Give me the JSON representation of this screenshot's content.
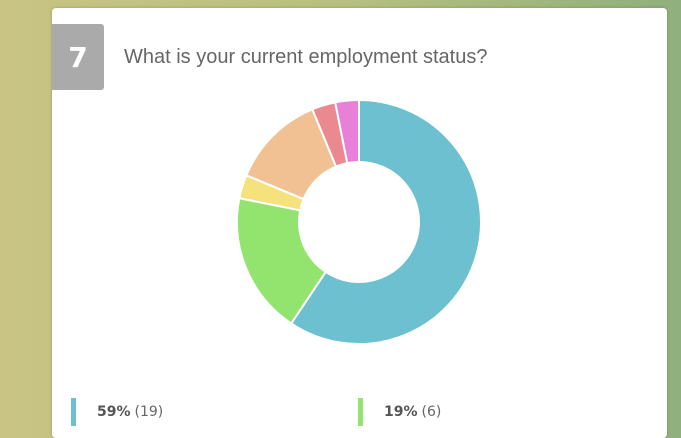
{
  "question_number": "7",
  "chart_data": {
    "type": "donut",
    "title": "What is your current employment status?",
    "values": [
      19,
      6,
      1,
      4,
      1,
      1
    ],
    "colors": [
      "#6cc0d0",
      "#93e46f",
      "#f5e27c",
      "#f2c193",
      "#ea8a90",
      "#e880d9"
    ],
    "legend": [
      {
        "percent": "59%",
        "count": "(19)"
      },
      {
        "percent": "19%",
        "count": "(6)"
      }
    ]
  }
}
